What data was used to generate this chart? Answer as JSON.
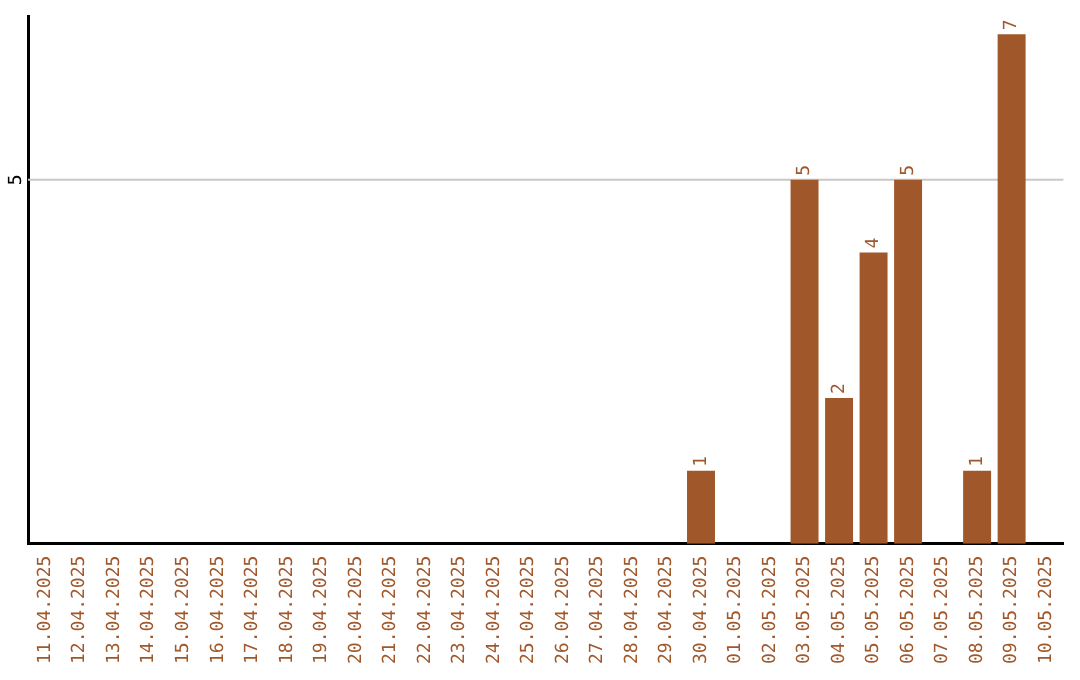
{
  "chart_data": {
    "type": "bar",
    "categories": [
      "11.04.2025",
      "12.04.2025",
      "13.04.2025",
      "14.04.2025",
      "15.04.2025",
      "16.04.2025",
      "17.04.2025",
      "18.04.2025",
      "19.04.2025",
      "20.04.2025",
      "21.04.2025",
      "22.04.2025",
      "23.04.2025",
      "24.04.2025",
      "25.04.2025",
      "26.04.2025",
      "27.04.2025",
      "28.04.2025",
      "29.04.2025",
      "30.04.2025",
      "01.05.2025",
      "02.05.2025",
      "03.05.2025",
      "04.05.2025",
      "05.05.2025",
      "06.05.2025",
      "07.05.2025",
      "08.05.2025",
      "09.05.2025",
      "10.05.2025"
    ],
    "values": [
      null,
      null,
      null,
      null,
      null,
      null,
      null,
      null,
      null,
      null,
      null,
      null,
      null,
      null,
      null,
      null,
      null,
      null,
      null,
      1,
      null,
      null,
      5,
      2,
      4,
      5,
      null,
      1,
      7,
      null
    ],
    "data_labels": true,
    "color": "#a0572a",
    "ylim": [
      0,
      7.25
    ],
    "ref_lines": [
      {
        "axis": "y",
        "value": 5,
        "label": "5",
        "color": "#c8c8c8"
      }
    ],
    "legend": false
  }
}
